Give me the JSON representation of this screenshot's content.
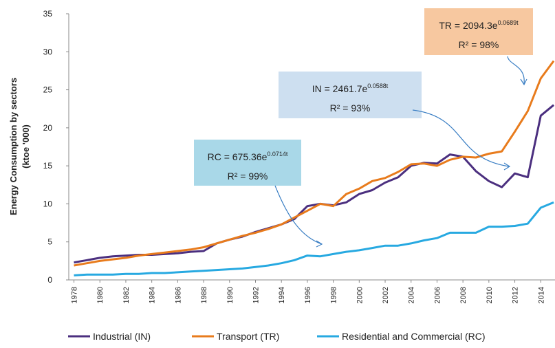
{
  "chart_data": {
    "type": "line",
    "y_label": [
      "Energy Consumption by sectors",
      "(ktoe '000)"
    ],
    "x": [
      1978,
      1979,
      1980,
      1981,
      1982,
      1983,
      1984,
      1985,
      1986,
      1987,
      1988,
      1989,
      1990,
      1991,
      1992,
      1993,
      1994,
      1995,
      1996,
      1997,
      1998,
      1999,
      2000,
      2001,
      2002,
      2003,
      2004,
      2005,
      2006,
      2007,
      2008,
      2009,
      2010,
      2011,
      2012,
      2013,
      2014,
      2015
    ],
    "xlim": [
      1977.6,
      2015.1
    ],
    "xticks": [
      1978,
      1980,
      1982,
      1984,
      1986,
      1988,
      1990,
      1992,
      1994,
      1996,
      1998,
      2000,
      2002,
      2004,
      2006,
      2008,
      2010,
      2012,
      2014
    ],
    "ylim": [
      0,
      35
    ],
    "yticks": [
      0,
      5,
      10,
      15,
      20,
      25,
      30,
      35
    ],
    "grid": false,
    "legend": "bottom",
    "series": [
      {
        "name": "Industrial (IN)",
        "color": "#4b2f7f",
        "values": [
          2.3,
          2.6,
          2.9,
          3.1,
          3.2,
          3.3,
          3.3,
          3.4,
          3.5,
          3.7,
          3.8,
          4.8,
          5.3,
          5.7,
          6.3,
          6.8,
          7.3,
          8.0,
          9.7,
          10.0,
          9.8,
          10.2,
          11.3,
          11.8,
          12.8,
          13.5,
          15.0,
          15.4,
          15.3,
          16.5,
          16.2,
          14.3,
          13.0,
          12.2,
          14.0,
          13.5,
          21.6,
          23.0
        ]
      },
      {
        "name": "Transport (TR)",
        "color": "#e87b1c",
        "values": [
          1.9,
          2.2,
          2.5,
          2.7,
          2.9,
          3.2,
          3.4,
          3.6,
          3.8,
          4.0,
          4.3,
          4.8,
          5.3,
          5.8,
          6.2,
          6.7,
          7.3,
          8.2,
          9.1,
          10.0,
          9.7,
          11.3,
          12.0,
          13.0,
          13.4,
          14.2,
          15.2,
          15.3,
          15.0,
          15.8,
          16.2,
          16.1,
          16.6,
          16.9,
          19.5,
          22.2,
          26.5,
          28.8
        ]
      },
      {
        "name": "Residential and Commercial (RC)",
        "color": "#27a9e1",
        "values": [
          0.6,
          0.7,
          0.7,
          0.7,
          0.8,
          0.8,
          0.9,
          0.9,
          1.0,
          1.1,
          1.2,
          1.3,
          1.4,
          1.5,
          1.7,
          1.9,
          2.2,
          2.6,
          3.2,
          3.1,
          3.4,
          3.7,
          3.9,
          4.2,
          4.5,
          4.5,
          4.8,
          5.2,
          5.5,
          6.2,
          6.2,
          6.2,
          7.0,
          7.0,
          7.1,
          7.4,
          9.5,
          10.2
        ]
      }
    ],
    "annotations": [
      {
        "base": "RC = 675.36e",
        "exp": "0.0714t",
        "r2": "R² = 99%"
      },
      {
        "base": "IN = 2461.7e",
        "exp": "0.0588t",
        "r2": "R² = 93%"
      },
      {
        "base": "TR = 2094.3e",
        "exp": "0.0689t",
        "r2": "R² = 98%"
      }
    ]
  }
}
